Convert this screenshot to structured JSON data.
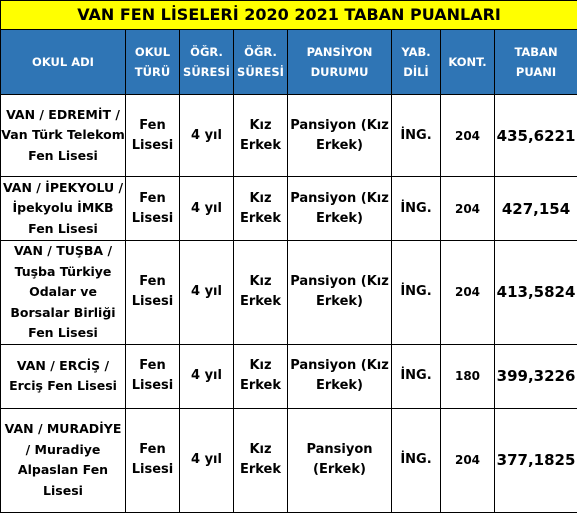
{
  "title": "VAN FEN LİSELERİ 2020 2021 TABAN PUANLARI",
  "headers": [
    "OKUL ADI",
    "OKUL TÜRÜ",
    "ÖĞR. SÜRESİ",
    "ÖĞR. SÜRESİ",
    "PANSİYON DURUMU",
    "YAB. DİLİ",
    "KONT.",
    "TABAN PUANI"
  ],
  "rows": [
    {
      "okul_adi": "VAN / EDREMİT / Van Türk Telekom Fen Lisesi",
      "okul_turu": "Fen Lisesi",
      "ogr_suresi": "4 yıl",
      "ogr_cinsiyet": "Kız Erkek",
      "pansiyon": "Pansiyon (Kız Erkek)",
      "yab_dili": "İNG.",
      "kont": "204",
      "taban": "435,6221"
    },
    {
      "okul_adi": "VAN / İPEKYOLU / İpekyolu İMKB Fen Lisesi",
      "okul_turu": "Fen Lisesi",
      "ogr_suresi": "4 yıl",
      "ogr_cinsiyet": "Kız Erkek",
      "pansiyon": "Pansiyon (Kız Erkek)",
      "yab_dili": "İNG.",
      "kont": "204",
      "taban": "427,154"
    },
    {
      "okul_adi": "VAN / TUŞBA / Tuşba Türkiye Odalar ve Borsalar Birliği Fen Lisesi",
      "okul_turu": "Fen Lisesi",
      "ogr_suresi": "4 yıl",
      "ogr_cinsiyet": "Kız Erkek",
      "pansiyon": "Pansiyon (Kız Erkek)",
      "yab_dili": "İNG.",
      "kont": "204",
      "taban": "413,5824"
    },
    {
      "okul_adi": "VAN / ERCİŞ / Erciş Fen Lisesi",
      "okul_turu": "Fen Lisesi",
      "ogr_suresi": "4 yıl",
      "ogr_cinsiyet": "Kız Erkek",
      "pansiyon": "Pansiyon (Kız Erkek)",
      "yab_dili": "İNG.",
      "kont": "180",
      "taban": "399,3226"
    },
    {
      "okul_adi": "VAN / MURADİYE / Muradiye Alpaslan Fen Lisesi",
      "okul_turu": "Fen Lisesi",
      "ogr_suresi": "4 yıl",
      "ogr_cinsiyet": "Kız Erkek",
      "pansiyon": "Pansiyon (Erkek)",
      "yab_dili": "İNG.",
      "kont": "204",
      "taban": "377,1825"
    }
  ],
  "colors": {
    "title_bg": "#ffff00",
    "header_bg": "#2f75b5",
    "header_text": "#ffffff"
  }
}
